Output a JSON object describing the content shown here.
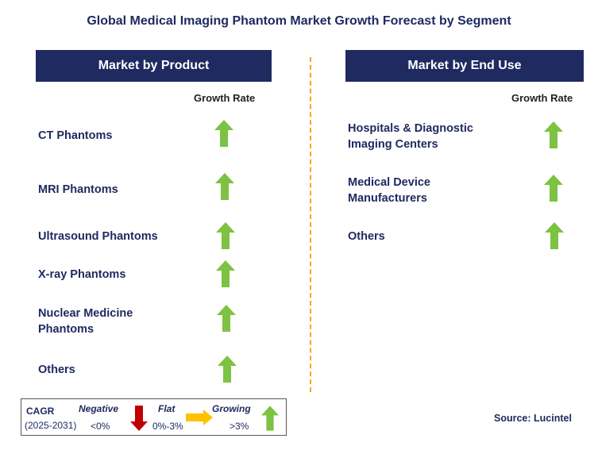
{
  "title": "Global Medical Imaging Phantom Market Growth Forecast by Segment",
  "left_panel": {
    "header": "Market by Product",
    "growth_label": "Growth Rate",
    "items": [
      {
        "label": "CT Phantoms",
        "growth": "growing"
      },
      {
        "label": "MRI Phantoms",
        "growth": "growing"
      },
      {
        "label": "Ultrasound Phantoms",
        "growth": "growing"
      },
      {
        "label": "X-ray Phantoms",
        "growth": "growing"
      },
      {
        "label": "Nuclear Medicine Phantoms",
        "growth": "growing"
      },
      {
        "label": "Others",
        "growth": "growing"
      }
    ]
  },
  "right_panel": {
    "header": "Market by End Use",
    "growth_label": "Growth Rate",
    "items": [
      {
        "label": "Hospitals & Diagnostic Imaging Centers",
        "growth": "growing"
      },
      {
        "label": "Medical Device Manufacturers",
        "growth": "growing"
      },
      {
        "label": "Others",
        "growth": "growing"
      }
    ]
  },
  "legend": {
    "cagr_label": "CAGR",
    "period": "(2025-2031)",
    "negative_label": "Negative",
    "negative_value": "<0%",
    "flat_label": "Flat",
    "flat_value": "0%-3%",
    "growing_label": "Growing",
    "growing_value": ">3%"
  },
  "source": "Source: Lucintel",
  "colors": {
    "navy": "#1f2a60",
    "green_arrow": "#7dc242",
    "red_arrow": "#c00000",
    "flat_arrow": "#ffc000",
    "divider": "#f5a623"
  }
}
